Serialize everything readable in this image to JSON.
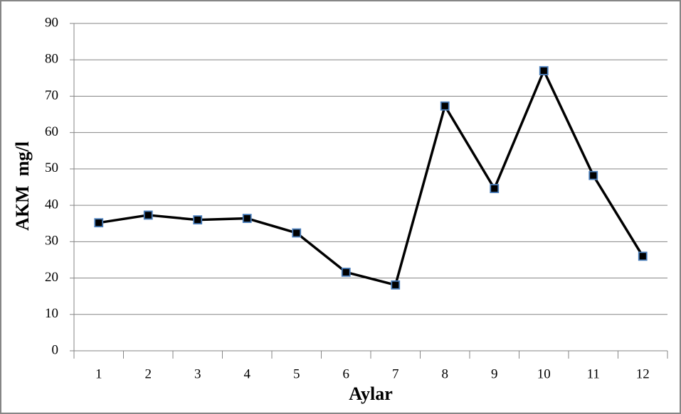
{
  "chart_data": {
    "type": "line",
    "x_label": "Aylar",
    "y_label": "AKM  mg/l",
    "categories": [
      "1",
      "2",
      "3",
      "4",
      "5",
      "6",
      "7",
      "8",
      "9",
      "10",
      "11",
      "12"
    ],
    "values": [
      35.2,
      37.3,
      36,
      36.4,
      32.4,
      21.6,
      18.1,
      67.3,
      44.6,
      77,
      48.2,
      26
    ],
    "color": "#000000",
    "marker_edge_color": "#4a7ebb",
    "ylim": [
      0,
      90
    ],
    "yticks": [
      0,
      10,
      20,
      30,
      40,
      50,
      60,
      70,
      80,
      90
    ],
    "grid": true
  }
}
